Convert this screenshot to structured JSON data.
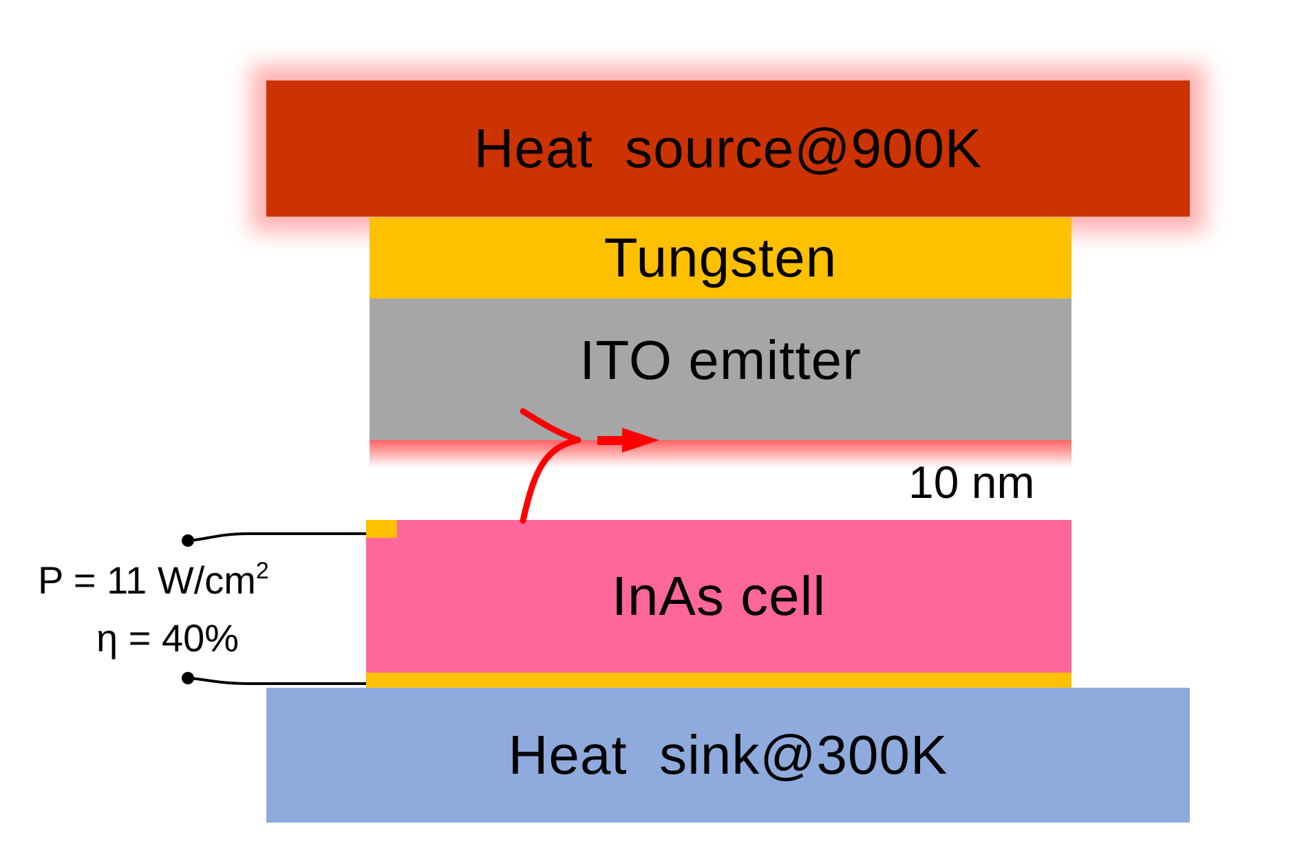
{
  "layers": {
    "heat_source": {
      "label": "Heat  source@900K",
      "color": "#cc3300"
    },
    "tungsten": {
      "label": "Tungsten",
      "color": "#ffc000"
    },
    "ito_emitter": {
      "label": "ITO emitter",
      "color": "#a6a6a6"
    },
    "inas_cell": {
      "label": "InAs cell",
      "color": "#ff6699"
    },
    "contact": {
      "color": "#ffc000"
    },
    "heat_sink": {
      "label": "Heat  sink@300K",
      "color": "#8faadc"
    }
  },
  "gap": {
    "label": "10 nm",
    "glow_color": "#ff4d4d"
  },
  "output": {
    "power_prefix": "P = 11 W/cm",
    "power_exponent": "2",
    "efficiency": "η = 40%"
  },
  "arrow": {
    "color": "#ff0000"
  },
  "wire": {
    "color": "#000000"
  }
}
